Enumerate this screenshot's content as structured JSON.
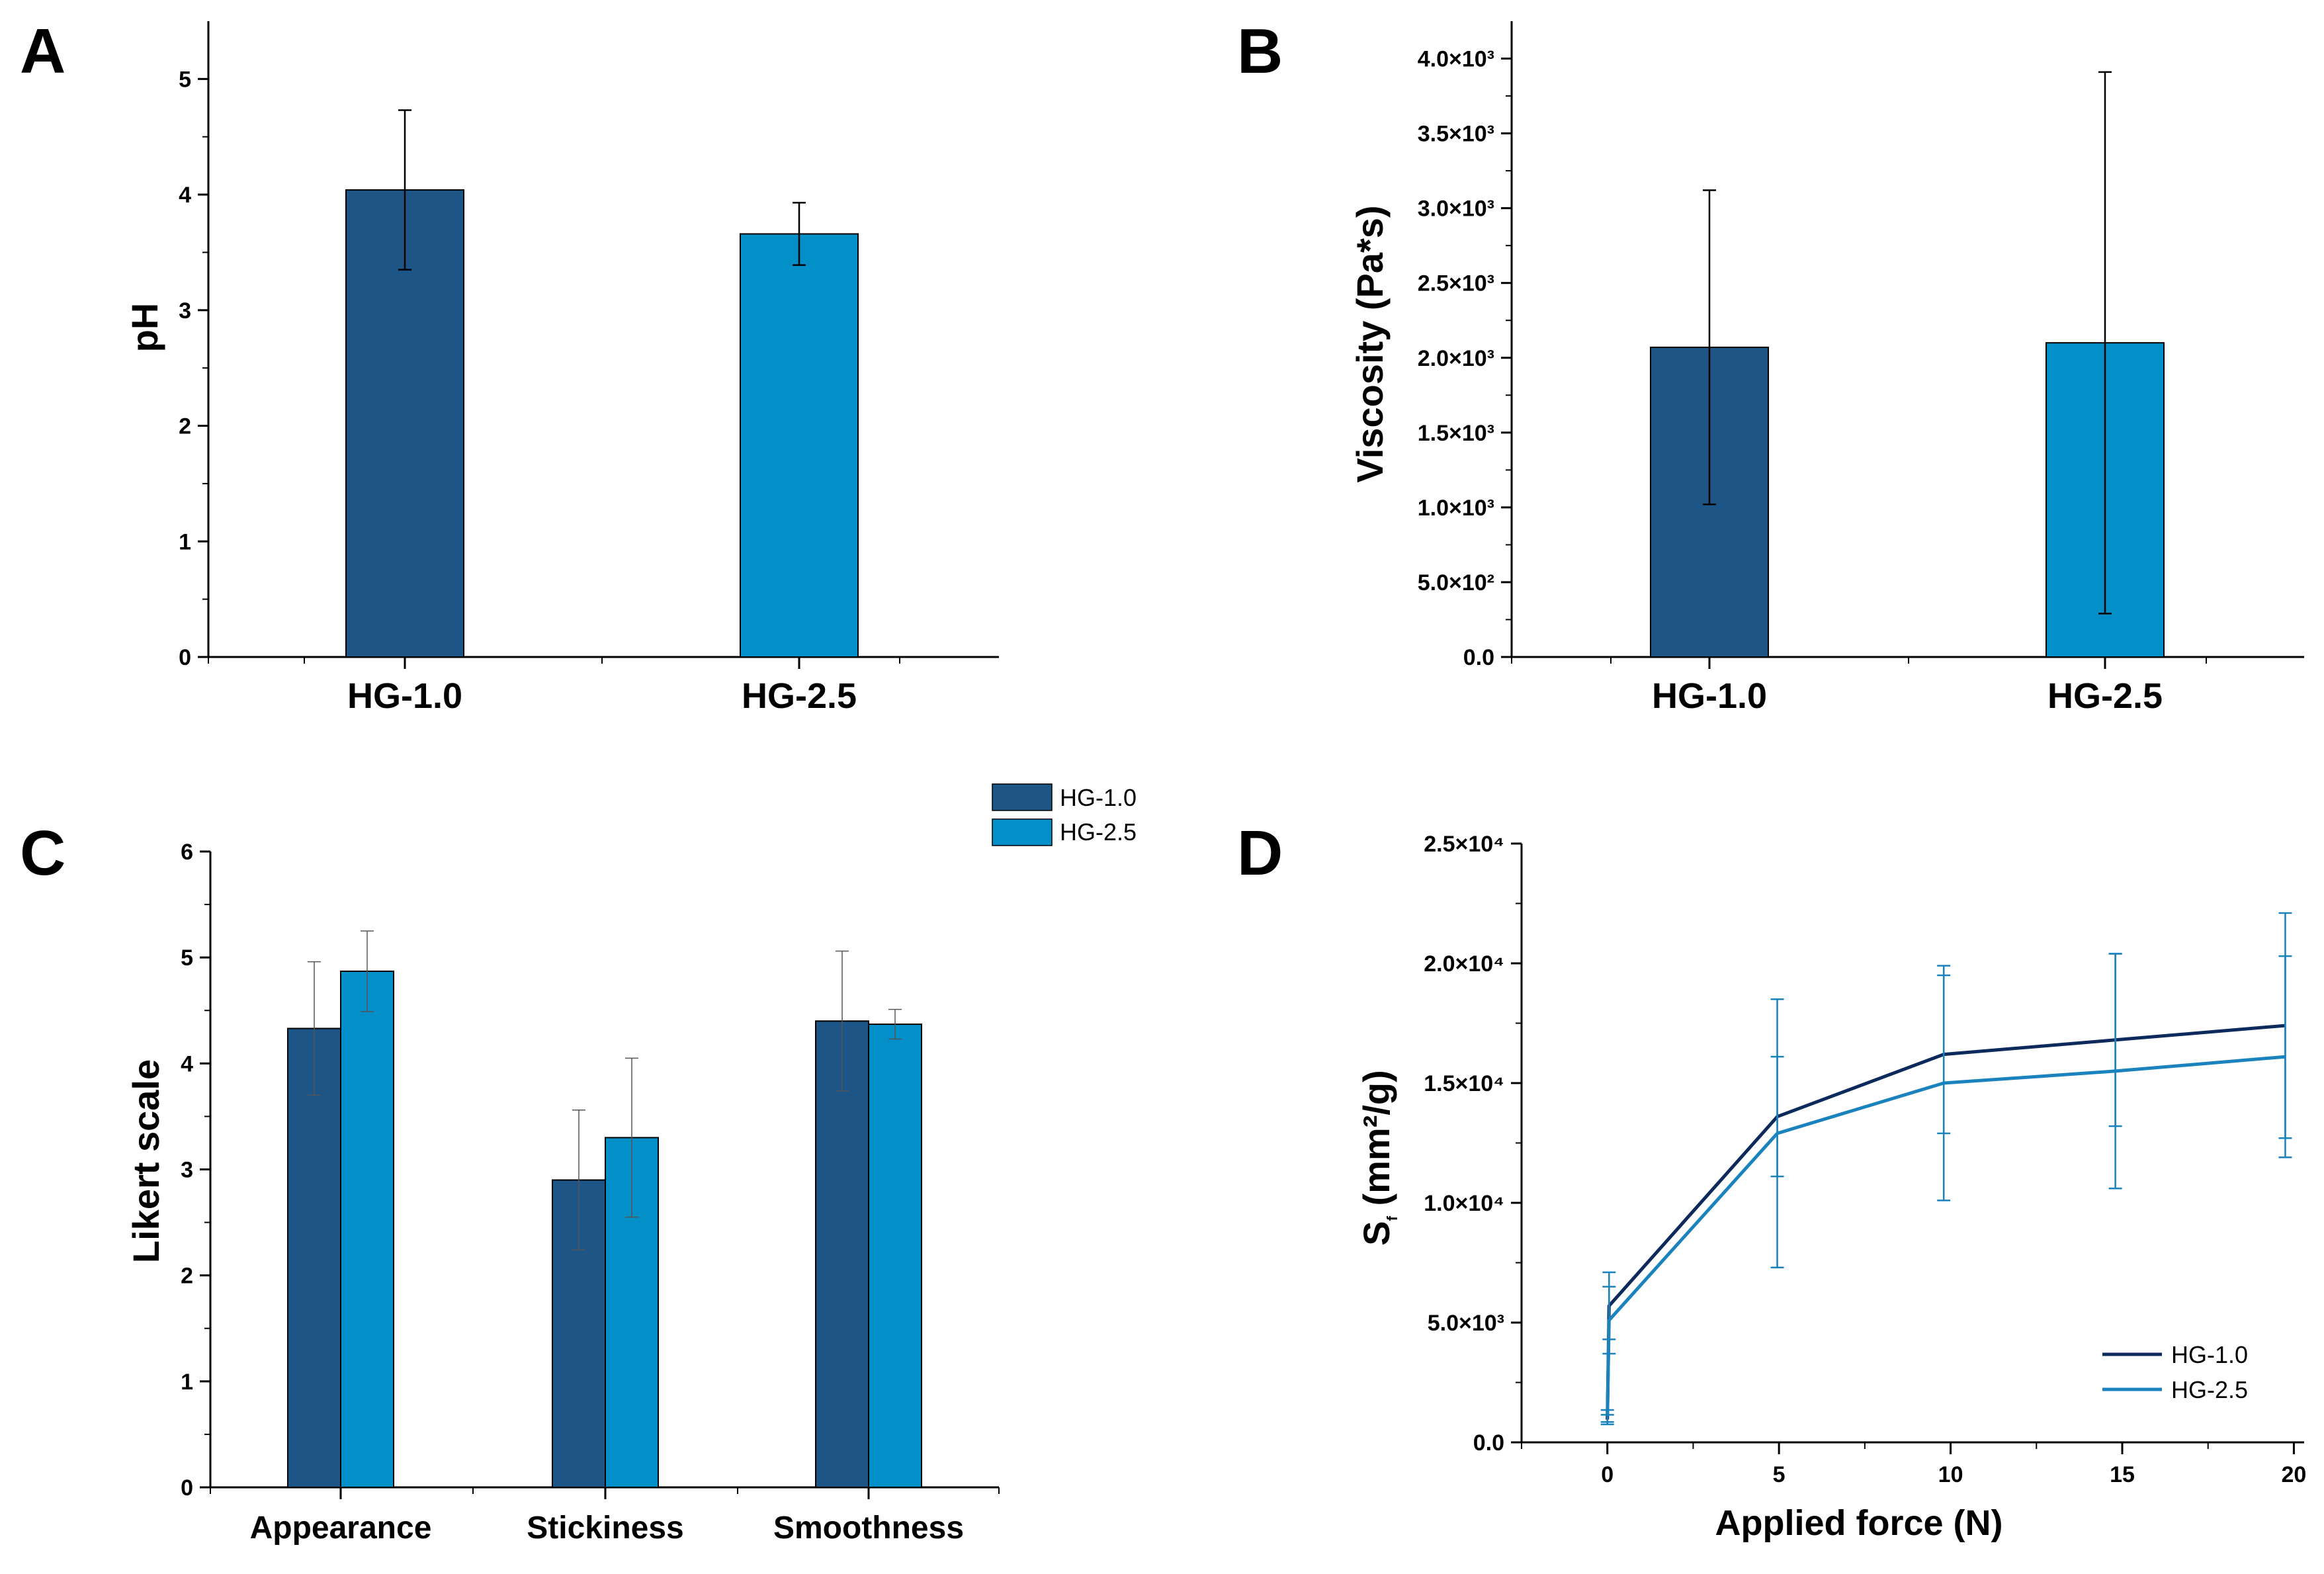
{
  "colors": {
    "hg10": "#1e5587",
    "hg25": "#038fc7",
    "line10": "#0c2a5c",
    "line25": "#1a82bd",
    "axis": "#000000"
  },
  "chart_data": [
    {
      "panel": "A",
      "type": "bar",
      "ylabel": "pH",
      "categories": [
        "HG-1.0",
        "HG-2.5"
      ],
      "values": [
        4.04,
        3.66
      ],
      "errors": [
        0.69,
        0.27
      ],
      "ylim": [
        0,
        5.5
      ],
      "yticks": [
        "0",
        "1",
        "2",
        "3",
        "4",
        "5"
      ]
    },
    {
      "panel": "B",
      "type": "bar",
      "ylabel": "Viscosity (Pa*s)",
      "categories": [
        "HG-1.0",
        "HG-2.5"
      ],
      "values": [
        2070,
        2100
      ],
      "errors": [
        1050,
        1810
      ],
      "ylim": [
        0,
        4250
      ],
      "yticks": [
        "0.0",
        "5.0×10²",
        "1.0×10³",
        "1.5×10³",
        "2.0×10³",
        "2.5×10³",
        "3.0×10³",
        "3.5×10³",
        "4.0×10³"
      ]
    },
    {
      "panel": "C",
      "type": "bar",
      "ylabel": "Likert scale",
      "categories": [
        "Appearance",
        "Stickiness",
        "Smoothness"
      ],
      "series": [
        {
          "name": "HG-1.0",
          "values": [
            4.33,
            2.9,
            4.4
          ],
          "errors": [
            0.63,
            0.66,
            0.66
          ]
        },
        {
          "name": "HG-2.5",
          "values": [
            4.87,
            3.3,
            4.37
          ],
          "errors": [
            0.38,
            0.75,
            0.14
          ]
        }
      ],
      "ylim": [
        0,
        6
      ],
      "yticks": [
        "0",
        "1",
        "2",
        "3",
        "4",
        "5",
        "6"
      ],
      "legend": "top-right"
    },
    {
      "panel": "D",
      "type": "line",
      "xlabel": "Applied force (N)",
      "ylabel": "Sf (mm²/g)",
      "ylabel_main": "S",
      "ylabel_sub": "f",
      "ylabel_rest": " (mm²/g)",
      "xlim": [
        -2.5,
        20.3
      ],
      "ylim": [
        0,
        25000
      ],
      "xticks": [
        "0",
        "5",
        "10",
        "15",
        "20"
      ],
      "yticks": [
        "0.0",
        "5.0×10³",
        "1.0×10⁴",
        "1.5×10⁴",
        "2.0×10⁴",
        "2.5×10⁴"
      ],
      "series": [
        {
          "name": "HG-1.0",
          "x": [
            0,
            0.05,
            4.95,
            9.8,
            14.8,
            19.75
          ],
          "y": [
            950,
            5700,
            13600,
            16200,
            16800,
            17400
          ],
          "errors": [
            200,
            1400,
            2500,
            3300,
            3600,
            4700
          ]
        },
        {
          "name": "HG-2.5",
          "x": [
            0,
            0.05,
            4.95,
            9.8,
            14.8,
            19.75
          ],
          "y": [
            1100,
            5100,
            12900,
            15000,
            15500,
            16100
          ],
          "errors": [
            250,
            1400,
            5600,
            4900,
            4900,
            4200
          ]
        }
      ],
      "legend": "bottom-right"
    }
  ]
}
